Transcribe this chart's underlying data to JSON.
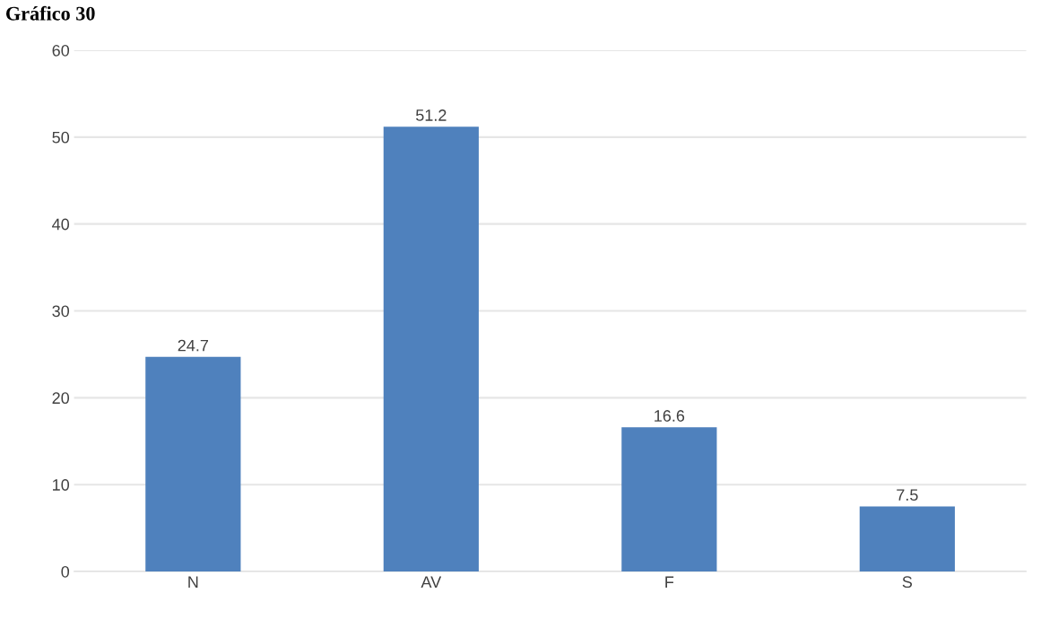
{
  "chart_data": {
    "type": "bar",
    "title": "Gráfico 30",
    "categories": [
      "N",
      "AV",
      "F",
      "S"
    ],
    "values": [
      24.7,
      51.2,
      16.6,
      7.5
    ],
    "color": "#4f81bd",
    "ylim": [
      0,
      60
    ],
    "yticks": [
      0,
      10,
      20,
      30,
      40,
      50,
      60
    ],
    "grid": "y",
    "data_labels": true
  }
}
